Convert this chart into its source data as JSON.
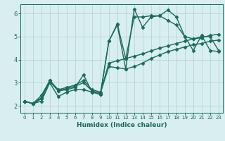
{
  "title": "",
  "xlabel": "Humidex (Indice chaleur)",
  "ylabel": "",
  "xlim": [
    -0.5,
    23.5
  ],
  "ylim": [
    1.7,
    6.4
  ],
  "yticks": [
    2,
    3,
    4,
    5,
    6
  ],
  "xticks": [
    0,
    1,
    2,
    3,
    4,
    5,
    6,
    7,
    8,
    9,
    10,
    11,
    12,
    13,
    14,
    15,
    16,
    17,
    18,
    19,
    20,
    21,
    22,
    23
  ],
  "background_color": "#d8eef0",
  "grid_color": "#b0d0d4",
  "line_color": "#1a6b5a",
  "line_width": 1.0,
  "marker": "D",
  "marker_size": 2.5,
  "series": [
    [
      2.2,
      2.1,
      2.2,
      3.0,
      2.4,
      2.6,
      2.7,
      2.7,
      2.6,
      2.5,
      4.8,
      5.5,
      3.6,
      6.2,
      5.4,
      5.85,
      5.9,
      6.15,
      5.85,
      5.0,
      4.9,
      5.0,
      5.0,
      4.4
    ],
    [
      2.2,
      2.1,
      2.3,
      3.1,
      2.65,
      2.7,
      2.8,
      3.35,
      2.6,
      2.5,
      4.8,
      5.55,
      4.05,
      5.85,
      5.85,
      5.9,
      5.9,
      5.7,
      5.5,
      5.0,
      4.4,
      5.05,
      4.4,
      4.35
    ],
    [
      2.2,
      2.1,
      2.35,
      3.05,
      2.65,
      2.75,
      2.85,
      3.0,
      2.65,
      2.55,
      3.7,
      3.65,
      3.6,
      3.7,
      3.85,
      4.05,
      4.2,
      4.35,
      4.45,
      4.55,
      4.65,
      4.7,
      4.8,
      4.85
    ],
    [
      2.2,
      2.1,
      2.45,
      3.1,
      2.7,
      2.8,
      2.9,
      3.1,
      2.7,
      2.6,
      3.85,
      3.95,
      4.05,
      4.15,
      4.25,
      4.38,
      4.5,
      4.6,
      4.7,
      4.8,
      4.9,
      4.95,
      5.05,
      5.1
    ]
  ]
}
